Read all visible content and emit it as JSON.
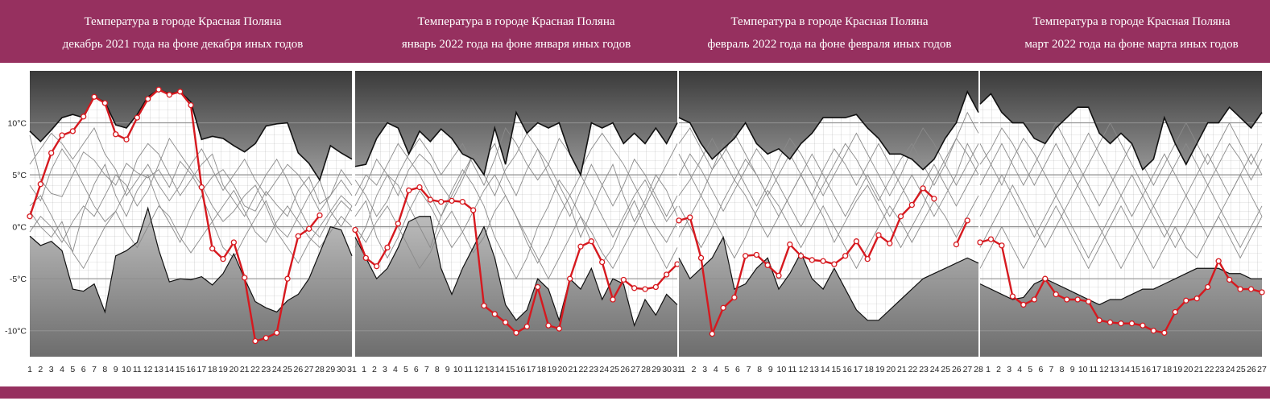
{
  "colors": {
    "banner": "#96305f",
    "current_year": "#d6191f",
    "history_lines": "#8a8a8a",
    "envelope": "#111111",
    "background_top": "#3a3a3a",
    "background_bottom": "#7a7a7a"
  },
  "chart_data": [
    {
      "type": "line",
      "title_line1": "Температура в городе Красная Поляна",
      "title_line2": "декабрь 2021 года на фоне декабря иных годов",
      "y_ticks": [
        "10°C",
        "5°C",
        "0°C",
        "-5°C",
        "-10°C"
      ],
      "ylim": [
        -12.5,
        15
      ],
      "days": 31,
      "upper": [
        9.2,
        8.2,
        9.3,
        10.5,
        10.8,
        10.5,
        12.5,
        12.0,
        9.8,
        9.5,
        10.8,
        12.5,
        13.2,
        12.8,
        13.0,
        12.0,
        8.4,
        8.7,
        8.5,
        7.8,
        7.2,
        8.0,
        9.7,
        9.9,
        10.0,
        7.1,
        6.1,
        4.5,
        7.8,
        7.1,
        6.5
      ],
      "lower": [
        -0.9,
        -1.8,
        -1.4,
        -2.3,
        -6.0,
        -6.2,
        -5.5,
        -8.2,
        -2.8,
        -2.3,
        -1.5,
        1.8,
        -2.2,
        -5.3,
        -5.0,
        -5.1,
        -4.8,
        -5.6,
        -4.5,
        -2.6,
        -5.0,
        -7.2,
        -7.8,
        -8.2,
        -7.1,
        -6.5,
        -5.0,
        -2.5,
        0.0,
        -0.3,
        -2.8
      ],
      "current": [
        1.0,
        4.1,
        7.1,
        8.8,
        9.2,
        10.6,
        12.5,
        11.9,
        8.9,
        8.4,
        10.5,
        12.3,
        13.2,
        12.7,
        13.0,
        11.7,
        3.8,
        -2.1,
        -3.1,
        -1.5,
        -4.9,
        -11.0,
        -10.7,
        -10.2,
        -5.0,
        -0.9,
        -0.2,
        1.1,
        null,
        null,
        null
      ],
      "history": [
        [
          8.8,
          4.5,
          3.2,
          2.9,
          5.0,
          7.2,
          6.4,
          5.0,
          4.0,
          6.1,
          5.2,
          4.7,
          5.5,
          3.8,
          6.3,
          5.1,
          3.4,
          4.8,
          5.5,
          4.0,
          2.0,
          1.5,
          3.4,
          2.1,
          1.0,
          3.5,
          4.8,
          2.2,
          3.0,
          5.5,
          4.0
        ],
        [
          2.0,
          3.0,
          1.1,
          -1.0,
          -2.4,
          1.5,
          4.1,
          6.0,
          3.0,
          1.0,
          3.5,
          5.0,
          2.2,
          0.4,
          -1.5,
          1.0,
          3.0,
          0.5,
          -2.0,
          -3.0,
          -1.0,
          0.8,
          2.5,
          0.0,
          -1.0,
          1.0,
          3.0,
          4.5,
          1.5,
          0.0,
          2.0
        ],
        [
          4.0,
          2.5,
          5.5,
          7.5,
          6.0,
          4.0,
          2.0,
          0.5,
          1.5,
          3.5,
          6.5,
          8.0,
          7.0,
          5.0,
          3.0,
          4.5,
          6.0,
          7.0,
          4.0,
          2.5,
          1.0,
          3.0,
          5.0,
          6.5,
          4.5,
          2.0,
          0.0,
          -1.0,
          1.0,
          2.5,
          1.5
        ],
        [
          -0.5,
          1.0,
          0.0,
          -1.5,
          0.5,
          2.0,
          1.0,
          3.0,
          5.0,
          4.0,
          2.0,
          3.5,
          6.0,
          8.5,
          7.0,
          5.5,
          4.0,
          2.0,
          0.5,
          1.5,
          3.0,
          4.0,
          2.0,
          -0.5,
          -2.0,
          -3.5,
          -1.5,
          0.0,
          1.5,
          3.0,
          2.0
        ],
        [
          6.0,
          7.5,
          9.0,
          8.0,
          6.5,
          8.0,
          9.5,
          7.0,
          5.5,
          3.0,
          4.5,
          6.0,
          4.0,
          2.5,
          4.0,
          6.0,
          7.5,
          5.5,
          3.5,
          5.0,
          6.5,
          4.5,
          3.0,
          4.5,
          6.0,
          5.0,
          3.5,
          1.5,
          3.0,
          4.5,
          3.0
        ],
        [
          1.5,
          0.0,
          -1.0,
          0.5,
          -2.5,
          -4.0,
          -2.0,
          0.0,
          1.5,
          -0.5,
          -2.0,
          0.0,
          2.0,
          1.0,
          -1.0,
          -2.5,
          -1.0,
          0.5,
          2.0,
          3.5,
          1.5,
          -0.5,
          -1.5,
          0.5,
          2.0,
          0.5,
          -1.0,
          -2.0,
          -0.5,
          1.0,
          0.0
        ]
      ]
    },
    {
      "type": "line",
      "title_line1": "Температура в городе Красная Поляна",
      "title_line2": "январь 2022 года на фоне января иных годов",
      "y_ticks": [],
      "ylim": [
        -12.5,
        15
      ],
      "days": 31,
      "upper": [
        5.8,
        6.0,
        8.5,
        10.0,
        9.5,
        7.0,
        9.2,
        8.2,
        9.4,
        8.5,
        7.0,
        6.5,
        5.0,
        9.5,
        6.0,
        11.0,
        9.0,
        10.0,
        9.5,
        10.0,
        7.0,
        5.0,
        10.0,
        9.5,
        10.0,
        8.0,
        9.0,
        8.0,
        9.5,
        8.0,
        10.0
      ],
      "lower": [
        -1.0,
        -3.0,
        -5.0,
        -4.0,
        -2.0,
        0.5,
        1.0,
        1.0,
        -4.0,
        -6.5,
        -4.0,
        -2.0,
        0.0,
        -3.0,
        -7.5,
        -9.0,
        -8.0,
        -5.0,
        -6.0,
        -9.0,
        -5.0,
        -6.0,
        -4.0,
        -7.0,
        -5.0,
        -5.5,
        -9.5,
        -7.0,
        -8.5,
        -6.5,
        -7.5
      ],
      "current": [
        -0.3,
        -3.0,
        -3.8,
        -2.0,
        0.3,
        3.5,
        3.8,
        2.6,
        2.4,
        2.5,
        2.4,
        1.6,
        -7.6,
        -8.4,
        -9.2,
        -10.2,
        -9.6,
        -5.8,
        -9.5,
        -9.8,
        -5.0,
        -1.9,
        -1.4,
        -3.4,
        -7.0,
        -5.1,
        -5.9,
        -6.0,
        -5.8,
        -4.6,
        -3.6
      ],
      "history": [
        [
          2.0,
          4.0,
          6.5,
          5.0,
          3.0,
          5.5,
          7.0,
          6.0,
          4.0,
          2.5,
          4.5,
          7.0,
          6.5,
          8.0,
          5.0,
          3.0,
          5.5,
          7.5,
          6.0,
          4.0,
          2.0,
          -1.0,
          1.5,
          4.0,
          6.0,
          3.0,
          0.5,
          2.5,
          5.0,
          3.5,
          1.0
        ],
        [
          -2.0,
          0.0,
          3.0,
          5.0,
          4.0,
          2.0,
          0.0,
          -2.0,
          1.0,
          3.5,
          5.5,
          4.0,
          2.0,
          -1.0,
          -3.0,
          -5.0,
          -3.0,
          0.0,
          2.0,
          4.5,
          3.0,
          1.0,
          -1.5,
          -3.5,
          -2.0,
          0.5,
          2.5,
          0.0,
          -2.0,
          -4.0,
          -2.0
        ],
        [
          4.5,
          3.0,
          1.0,
          2.5,
          5.0,
          7.0,
          8.5,
          7.0,
          5.0,
          6.5,
          8.0,
          6.0,
          4.0,
          6.5,
          9.5,
          8.0,
          6.0,
          4.5,
          6.0,
          8.5,
          7.0,
          5.5,
          7.5,
          9.0,
          7.5,
          6.0,
          4.0,
          2.0,
          4.0,
          6.0,
          8.0
        ],
        [
          0.0,
          -1.5,
          0.5,
          2.0,
          0.0,
          -2.0,
          -4.0,
          -2.5,
          0.0,
          1.5,
          -0.5,
          -2.5,
          -1.0,
          1.5,
          3.0,
          1.0,
          -1.0,
          -3.0,
          -5.0,
          -3.0,
          -1.0,
          1.0,
          -0.5,
          -2.5,
          -4.0,
          -2.0,
          0.0,
          2.0,
          0.0,
          -1.5,
          0.5
        ],
        [
          3.0,
          5.0,
          4.0,
          6.0,
          8.0,
          6.5,
          5.0,
          3.0,
          1.0,
          3.0,
          5.0,
          7.0,
          5.0,
          3.0,
          5.5,
          7.0,
          9.0,
          7.5,
          5.0,
          3.0,
          1.0,
          3.5,
          6.0,
          4.0,
          2.0,
          4.0,
          6.5,
          5.0,
          3.0,
          1.0,
          3.0
        ],
        [
          1.0,
          2.5,
          -1.0,
          -3.0,
          -1.0,
          1.5,
          3.5,
          2.0,
          0.0,
          -2.0,
          -0.5,
          1.5,
          3.5,
          5.0,
          3.0,
          1.0,
          -1.5,
          -3.5,
          -1.5,
          1.0,
          3.0,
          5.0,
          3.0,
          1.0,
          -1.0,
          1.0,
          3.0,
          4.5,
          2.5,
          0.5,
          2.0
        ]
      ]
    },
    {
      "type": "line",
      "title_line1": "Температура в городе Красная Поляна",
      "title_line2": "февраль 2022 года на фоне февраля иных годов",
      "y_ticks": [],
      "ylim": [
        -12.5,
        15
      ],
      "days": 28,
      "upper": [
        10.5,
        10.0,
        8.0,
        6.5,
        7.5,
        8.5,
        10.0,
        8.0,
        7.0,
        7.5,
        6.5,
        8.0,
        9.0,
        10.5,
        10.5,
        10.5,
        10.8,
        9.5,
        8.5,
        7.0,
        7.0,
        6.5,
        5.5,
        6.5,
        8.5,
        10.0,
        13.0,
        11.0
      ],
      "lower": [
        -3.0,
        -5.0,
        -4.0,
        -3.0,
        -1.0,
        -6.0,
        -5.5,
        -4.0,
        -3.0,
        -6.0,
        -4.5,
        -2.5,
        -5.0,
        -6.0,
        -4.0,
        -6.0,
        -8.0,
        -9.0,
        -9.0,
        -8.0,
        -7.0,
        -6.0,
        -5.0,
        -4.5,
        -4.0,
        -3.5,
        -3.0,
        -3.5
      ],
      "current": [
        0.6,
        0.9,
        -3.0,
        -10.3,
        -7.8,
        -6.8,
        -2.8,
        -2.7,
        -3.7,
        -4.7,
        -1.7,
        -2.8,
        -3.2,
        -3.3,
        -3.6,
        -2.8,
        -1.4,
        -3.1,
        -0.8,
        -1.6,
        1.0,
        2.1,
        3.7,
        2.7,
        null,
        -1.7,
        0.6,
        null
      ],
      "history": [
        [
          7.0,
          5.0,
          3.0,
          5.5,
          8.0,
          6.0,
          4.0,
          2.0,
          4.0,
          6.5,
          8.5,
          7.0,
          5.0,
          3.0,
          5.0,
          7.0,
          9.0,
          7.0,
          5.0,
          3.0,
          5.0,
          7.5,
          9.5,
          8.0,
          6.0,
          4.0,
          6.0,
          8.0
        ],
        [
          2.0,
          0.0,
          -2.0,
          0.0,
          2.5,
          4.5,
          3.0,
          1.0,
          -1.0,
          1.0,
          3.0,
          5.0,
          3.0,
          1.0,
          -1.5,
          0.5,
          2.5,
          4.0,
          2.0,
          0.0,
          -2.0,
          0.0,
          2.0,
          4.5,
          6.5,
          8.5,
          11.0,
          9.0
        ],
        [
          5.0,
          7.0,
          5.5,
          3.5,
          1.5,
          3.5,
          5.5,
          7.5,
          6.0,
          4.0,
          2.0,
          0.0,
          2.0,
          4.0,
          6.0,
          8.0,
          6.5,
          4.5,
          2.5,
          4.5,
          6.5,
          8.0,
          6.0,
          4.0,
          6.0,
          8.5,
          7.0,
          5.0
        ],
        [
          -1.0,
          1.0,
          3.0,
          1.0,
          -1.0,
          -3.0,
          -1.0,
          1.5,
          3.5,
          2.0,
          0.0,
          -2.0,
          0.0,
          2.0,
          0.0,
          -2.0,
          -4.0,
          -2.0,
          0.0,
          2.0,
          0.5,
          -1.5,
          0.5,
          2.5,
          1.0,
          -1.0,
          1.0,
          3.0
        ],
        [
          8.0,
          9.5,
          7.5,
          5.5,
          7.0,
          9.0,
          7.0,
          5.0,
          3.0,
          5.0,
          7.0,
          5.0,
          3.0,
          5.5,
          7.5,
          6.0,
          4.0,
          6.0,
          8.0,
          6.0,
          4.0,
          2.0,
          4.0,
          6.0,
          4.0,
          2.0,
          4.0,
          6.0
        ],
        [
          3.0,
          4.5,
          6.5,
          8.5,
          6.5,
          4.5,
          6.5,
          5.0,
          3.0,
          1.0,
          3.0,
          5.0,
          7.0,
          5.0,
          3.0,
          1.0,
          3.0,
          5.0,
          3.0,
          1.0,
          3.0,
          5.0,
          3.0,
          1.0,
          3.0,
          5.0,
          8.0,
          6.0
        ]
      ]
    },
    {
      "type": "line",
      "title_line1": "Температура в городе Красная Поляна",
      "title_line2": "март 2022 года на фоне марта иных годов",
      "y_ticks": [],
      "ylim": [
        -12.5,
        15
      ],
      "days": 27,
      "upper": [
        11.8,
        12.8,
        11.0,
        10.0,
        10.0,
        8.5,
        8.0,
        9.5,
        10.5,
        11.5,
        11.5,
        9.0,
        8.0,
        9.0,
        8.0,
        5.5,
        6.5,
        10.5,
        8.0,
        6.0,
        8.0,
        10.0,
        10.0,
        11.5,
        10.5,
        9.5,
        11.0
      ],
      "lower": [
        -5.5,
        -6.0,
        -6.5,
        -7.0,
        -6.8,
        -5.5,
        -5.0,
        -5.5,
        -6.0,
        -6.5,
        -7.0,
        -7.5,
        -7.0,
        -7.0,
        -6.5,
        -6.0,
        -6.0,
        -5.5,
        -5.0,
        -4.5,
        -4.0,
        -4.0,
        -4.0,
        -4.5,
        -4.5,
        -5.0,
        -5.0
      ],
      "current": [
        -1.5,
        -1.2,
        -1.8,
        -6.7,
        -7.5,
        -7.0,
        -5.0,
        -6.5,
        -7.0,
        -7.0,
        -7.2,
        -9.0,
        -9.2,
        -9.3,
        -9.3,
        -9.5,
        -10.0,
        -10.2,
        -8.2,
        -7.1,
        -6.9,
        -5.8,
        -3.3,
        -5.1,
        -6.0,
        -6.0,
        -6.3
      ],
      "history": [
        [
          4.0,
          6.0,
          8.0,
          6.0,
          4.0,
          6.0,
          8.0,
          10.0,
          8.0,
          6.0,
          4.0,
          2.0,
          4.0,
          6.0,
          8.0,
          6.0,
          4.0,
          6.0,
          8.0,
          10.0,
          8.0,
          6.0,
          8.0,
          10.0,
          8.0,
          6.0,
          8.0
        ],
        [
          -2.0,
          0.0,
          2.0,
          4.0,
          2.0,
          0.0,
          -2.0,
          0.0,
          2.0,
          4.0,
          2.0,
          0.0,
          -2.0,
          -4.0,
          -2.0,
          0.0,
          2.0,
          0.0,
          -2.0,
          0.0,
          2.0,
          4.0,
          2.0,
          0.0,
          -2.0,
          0.0,
          2.0
        ],
        [
          8.0,
          6.0,
          4.0,
          6.5,
          8.5,
          7.0,
          5.0,
          3.0,
          5.0,
          7.0,
          9.0,
          7.0,
          5.0,
          3.0,
          1.0,
          3.0,
          5.0,
          7.0,
          5.0,
          3.0,
          5.0,
          7.0,
          5.0,
          3.0,
          5.0,
          7.0,
          5.0
        ],
        [
          1.0,
          3.0,
          5.0,
          3.0,
          1.0,
          -1.0,
          1.0,
          3.0,
          1.0,
          -1.0,
          -3.0,
          -1.0,
          1.0,
          3.0,
          5.0,
          3.0,
          1.0,
          -1.0,
          1.0,
          3.0,
          1.0,
          -1.0,
          1.0,
          3.0,
          5.0,
          3.0,
          1.0
        ],
        [
          6.0,
          7.5,
          9.5,
          8.0,
          6.0,
          4.0,
          6.0,
          8.0,
          6.0,
          4.0,
          6.0,
          8.0,
          10.0,
          8.0,
          6.0,
          4.0,
          2.0,
          4.0,
          6.0,
          8.0,
          6.0,
          4.0,
          6.0,
          8.0,
          6.5,
          4.5,
          6.5
        ],
        [
          -4.0,
          -2.0,
          0.0,
          -2.0,
          -4.0,
          -2.0,
          0.0,
          2.0,
          0.0,
          -2.0,
          -4.0,
          -2.0,
          0.0,
          2.0,
          0.0,
          -2.0,
          -4.0,
          -2.0,
          0.0,
          -2.0,
          -3.0,
          -1.0,
          1.0,
          -1.0,
          -3.0,
          -1.0,
          1.0
        ]
      ]
    }
  ]
}
